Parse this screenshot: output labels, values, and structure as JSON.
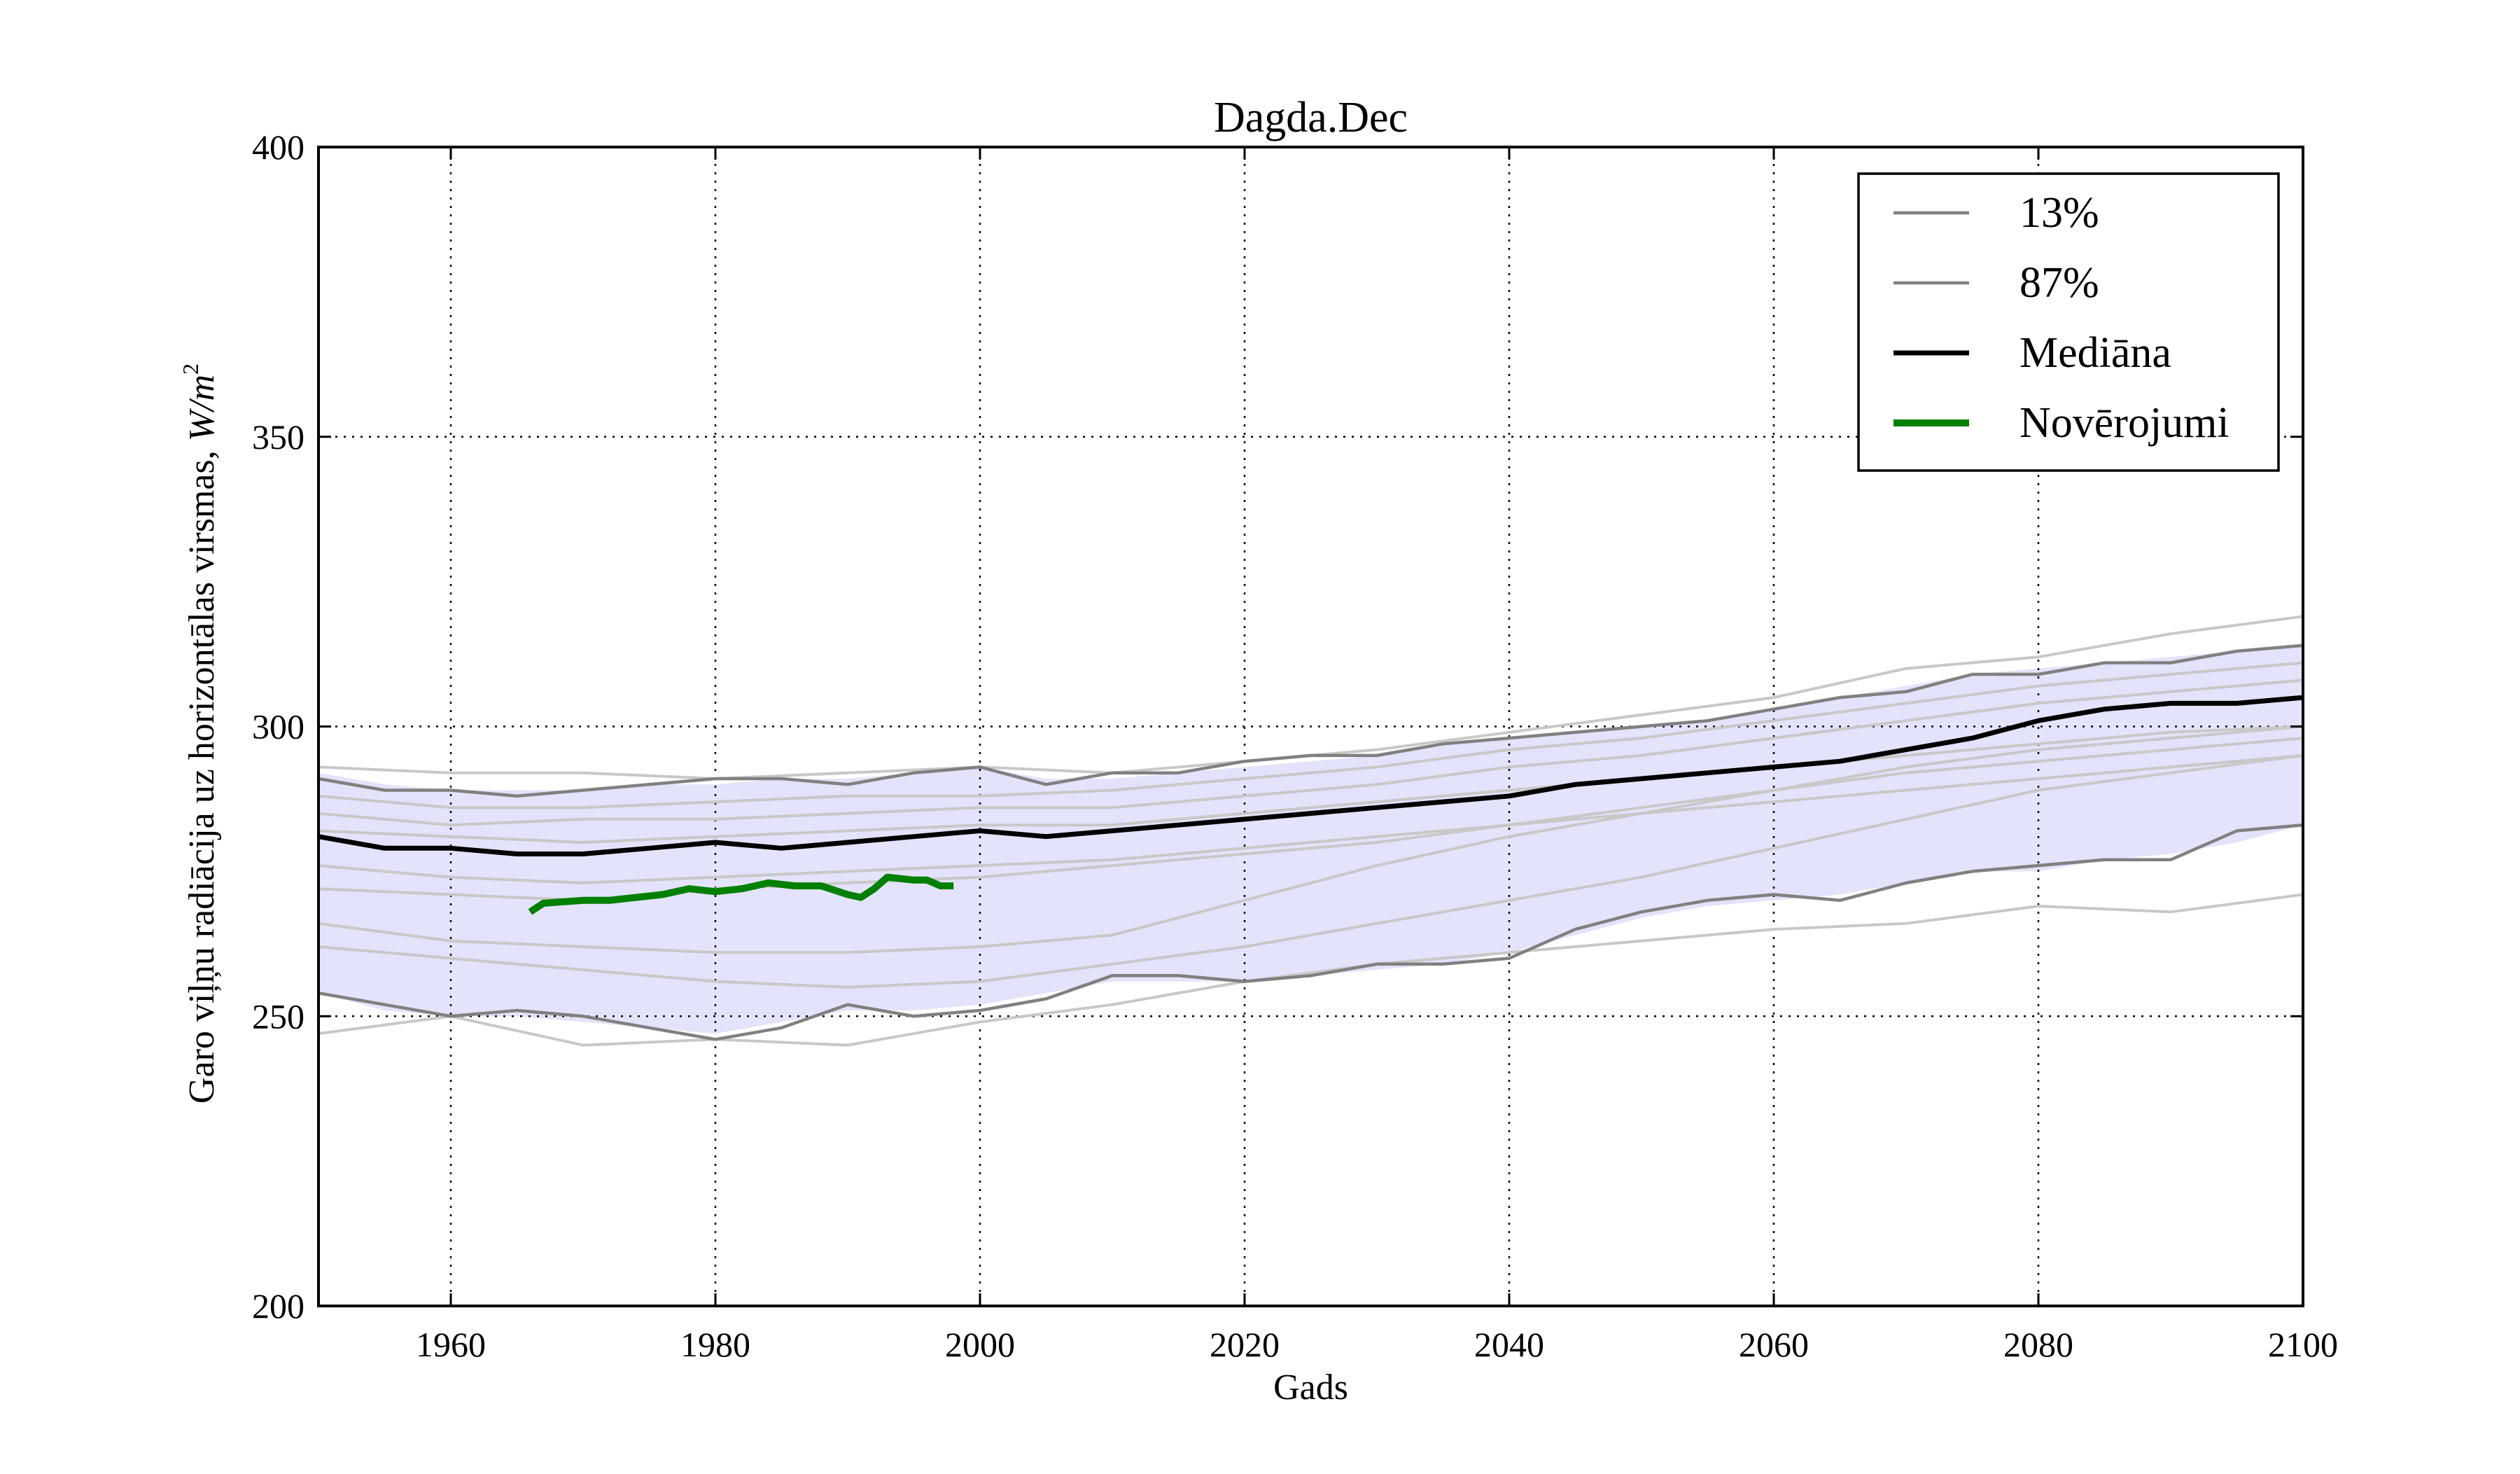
{
  "chart_data": {
    "type": "line",
    "title": "Dagda.Dec",
    "xlabel": "Gads",
    "ylabel": "Garo viļņu radiācija uz horizontālas virsmas, W/m²",
    "ylabel_text": "Garo viļņu radiācija uz horizontālas virsmas, ",
    "ylabel_unit": "W/m",
    "ylabel_unit_sup": "2",
    "xlim": [
      1950,
      2100
    ],
    "ylim": [
      200,
      400
    ],
    "xticks": [
      1960,
      1980,
      2000,
      2020,
      2040,
      2060,
      2080,
      2100
    ],
    "yticks": [
      200,
      250,
      300,
      350,
      400
    ],
    "grid": true,
    "legend_position": "top-right",
    "colors": {
      "band": "#e3e3fb",
      "percentile": "#808080",
      "ensemble": "#c8c8c8",
      "median": "#000000",
      "observations": "#008000"
    },
    "band": {
      "x": [
        1950,
        1955,
        1960,
        1965,
        1970,
        1975,
        1980,
        1985,
        1990,
        1995,
        2000,
        2005,
        2010,
        2015,
        2020,
        2025,
        2030,
        2035,
        2040,
        2045,
        2050,
        2055,
        2060,
        2065,
        2070,
        2075,
        2080,
        2085,
        2090,
        2095,
        2100
      ],
      "upper": [
        292,
        290,
        289,
        289,
        289,
        290,
        290,
        291,
        291,
        292,
        293,
        291,
        291,
        292,
        293,
        294,
        295,
        297,
        298,
        299,
        300,
        301,
        303,
        305,
        307,
        309,
        310,
        311,
        312,
        313,
        314
      ],
      "lower": [
        254,
        251,
        250,
        250,
        249,
        248,
        247,
        249,
        251,
        251,
        252,
        254,
        256,
        256,
        256,
        257,
        258,
        259,
        261,
        264,
        267,
        269,
        270,
        271,
        273,
        275,
        275,
        277,
        278,
        280,
        283
      ]
    },
    "series": [
      {
        "name": "13%",
        "x": [
          1950,
          1955,
          1960,
          1965,
          1970,
          1975,
          1980,
          1985,
          1990,
          1995,
          2000,
          2005,
          2010,
          2015,
          2020,
          2025,
          2030,
          2035,
          2040,
          2045,
          2050,
          2055,
          2060,
          2065,
          2070,
          2075,
          2080,
          2085,
          2090,
          2095,
          2100
        ],
        "values": [
          254,
          252,
          250,
          251,
          250,
          248,
          246,
          248,
          252,
          250,
          251,
          253,
          257,
          257,
          256,
          257,
          259,
          259,
          260,
          265,
          268,
          270,
          271,
          270,
          273,
          275,
          276,
          277,
          277,
          282,
          283
        ]
      },
      {
        "name": "87%",
        "x": [
          1950,
          1955,
          1960,
          1965,
          1970,
          1975,
          1980,
          1985,
          1990,
          1995,
          2000,
          2005,
          2010,
          2015,
          2020,
          2025,
          2030,
          2035,
          2040,
          2045,
          2050,
          2055,
          2060,
          2065,
          2070,
          2075,
          2080,
          2085,
          2090,
          2095,
          2100
        ],
        "values": [
          291,
          289,
          289,
          288,
          289,
          290,
          291,
          291,
          290,
          292,
          293,
          290,
          292,
          292,
          294,
          295,
          295,
          297,
          298,
          299,
          300,
          301,
          303,
          305,
          306,
          309,
          309,
          311,
          311,
          313,
          314
        ]
      },
      {
        "name": "Mediāna",
        "x": [
          1950,
          1955,
          1960,
          1965,
          1970,
          1975,
          1980,
          1985,
          1990,
          1995,
          2000,
          2005,
          2010,
          2015,
          2020,
          2025,
          2030,
          2035,
          2040,
          2045,
          2050,
          2055,
          2060,
          2065,
          2070,
          2075,
          2080,
          2085,
          2090,
          2095,
          2100
        ],
        "values": [
          281,
          279,
          279,
          278,
          278,
          279,
          280,
          279,
          280,
          281,
          282,
          281,
          282,
          283,
          284,
          285,
          286,
          287,
          288,
          290,
          291,
          292,
          293,
          294,
          296,
          298,
          301,
          303,
          304,
          304,
          305
        ]
      },
      {
        "name": "Novērojumi",
        "x": [
          1966,
          1967,
          1970,
          1972,
          1974,
          1976,
          1978,
          1980,
          1982,
          1984,
          1986,
          1988,
          1990,
          1991,
          1992,
          1993,
          1995,
          1996,
          1997,
          1998
        ],
        "values": [
          268,
          269.5,
          270,
          270,
          270.5,
          271,
          272,
          271.5,
          272,
          273,
          272.5,
          272.5,
          271,
          270.5,
          272,
          274,
          273.5,
          273.5,
          272.5,
          272.5
        ]
      }
    ],
    "ensemble_members": [
      {
        "x": [
          1950,
          1960,
          1970,
          1980,
          1990,
          2000,
          2010,
          2020,
          2030,
          2040,
          2050,
          2060,
          2070,
          2080,
          2090,
          2100
        ],
        "values": [
          293,
          292,
          292,
          291,
          292,
          293,
          292,
          294,
          296,
          299,
          302,
          305,
          310,
          312,
          316,
          319
        ]
      },
      {
        "x": [
          1950,
          1960,
          1970,
          1980,
          1990,
          2000,
          2010,
          2020,
          2030,
          2040,
          2050,
          2060,
          2070,
          2080,
          2090,
          2100
        ],
        "values": [
          288,
          286,
          286,
          287,
          288,
          288,
          289,
          291,
          293,
          296,
          298,
          301,
          304,
          307,
          309,
          311
        ]
      },
      {
        "x": [
          1950,
          1960,
          1970,
          1980,
          1990,
          2000,
          2010,
          2020,
          2030,
          2040,
          2050,
          2060,
          2070,
          2080,
          2090,
          2100
        ],
        "values": [
          285,
          283,
          284,
          284,
          285,
          286,
          286,
          288,
          290,
          293,
          295,
          298,
          301,
          304,
          306,
          308
        ]
      },
      {
        "x": [
          1950,
          1960,
          1970,
          1980,
          1990,
          2000,
          2010,
          2020,
          2030,
          2040,
          2050,
          2060,
          2070,
          2080,
          2090,
          2100
        ],
        "values": [
          282,
          281,
          280,
          281,
          282,
          283,
          283,
          285,
          287,
          289,
          291,
          293,
          295,
          297,
          299,
          300
        ]
      },
      {
        "x": [
          1950,
          1960,
          1970,
          1980,
          1990,
          2000,
          2010,
          2020,
          2030,
          2040,
          2050,
          2060,
          2070,
          2080,
          2090,
          2100
        ],
        "values": [
          276,
          274,
          273,
          274,
          275,
          276,
          277,
          279,
          281,
          283,
          285,
          287,
          289,
          291,
          293,
          295
        ]
      },
      {
        "x": [
          1950,
          1960,
          1970,
          1980,
          1990,
          2000,
          2010,
          2020,
          2030,
          2040,
          2050,
          2060,
          2070,
          2080,
          2090,
          2100
        ],
        "values": [
          272,
          271,
          270,
          272,
          273,
          274,
          276,
          278,
          280,
          283,
          286,
          289,
          292,
          294,
          296,
          298
        ]
      },
      {
        "x": [
          1950,
          1960,
          1970,
          1980,
          1990,
          2000,
          2010,
          2020,
          2030,
          2040,
          2050,
          2060,
          2070,
          2080,
          2090,
          2100
        ],
        "values": [
          266,
          263,
          262,
          261,
          261,
          262,
          264,
          270,
          276,
          281,
          285,
          289,
          293,
          296,
          298,
          300
        ]
      },
      {
        "x": [
          1950,
          1960,
          1970,
          1980,
          1990,
          2000,
          2010,
          2020,
          2030,
          2040,
          2050,
          2060,
          2070,
          2080,
          2090,
          2100
        ],
        "values": [
          262,
          260,
          258,
          256,
          255,
          256,
          259,
          262,
          266,
          270,
          274,
          279,
          284,
          289,
          292,
          295
        ]
      },
      {
        "x": [
          1950,
          1960,
          1970,
          1980,
          1990,
          2000,
          2010,
          2020,
          2030,
          2040,
          2050,
          2060,
          2070,
          2080,
          2090,
          2100
        ],
        "values": [
          247,
          250,
          245,
          246,
          245,
          249,
          252,
          256,
          259,
          261,
          263,
          265,
          266,
          269,
          268,
          271
        ]
      }
    ]
  }
}
